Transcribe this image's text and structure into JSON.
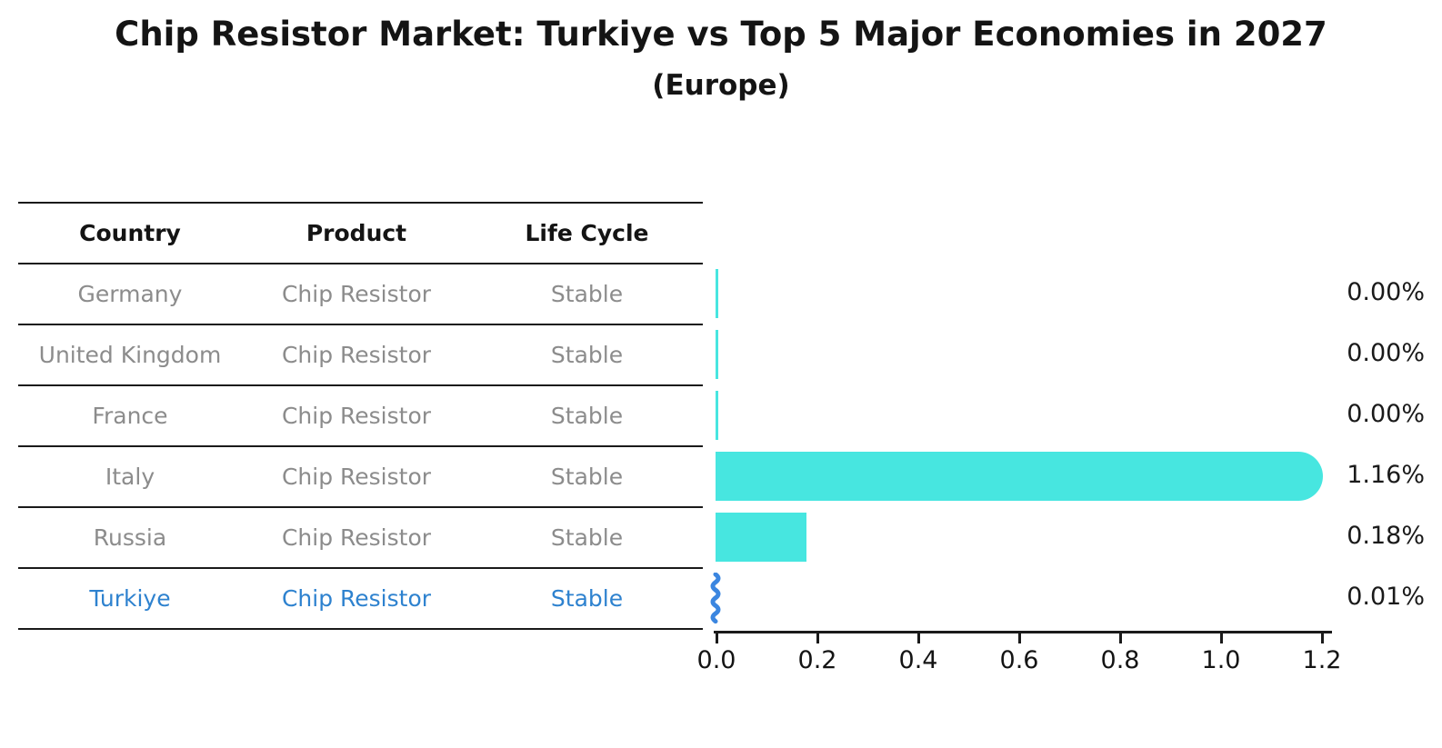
{
  "title": "Chip Resistor Market: Turkiye vs Top 5 Major Economies in 2027",
  "subtitle": "(Europe)",
  "table": {
    "headers": [
      "Country",
      "Product",
      "Life Cycle"
    ],
    "rows": [
      {
        "country": "Germany",
        "product": "Chip Resistor",
        "life_cycle": "Stable",
        "highlight": false
      },
      {
        "country": "United Kingdom",
        "product": "Chip Resistor",
        "life_cycle": "Stable",
        "highlight": false
      },
      {
        "country": "France",
        "product": "Chip Resistor",
        "life_cycle": "Stable",
        "highlight": false
      },
      {
        "country": "Italy",
        "product": "Chip Resistor",
        "life_cycle": "Stable",
        "highlight": false
      },
      {
        "country": "Russia",
        "product": "Chip Resistor",
        "life_cycle": "Stable",
        "highlight": false
      },
      {
        "country": "Turkiye",
        "product": "Chip Resistor",
        "life_cycle": "Stable",
        "highlight": true
      }
    ]
  },
  "chart_data": {
    "type": "bar",
    "orientation": "horizontal",
    "categories": [
      "Germany",
      "United Kingdom",
      "France",
      "Italy",
      "Russia",
      "Turkiye"
    ],
    "values": [
      0.0,
      0.0,
      0.0,
      1.16,
      0.18,
      0.01
    ],
    "value_labels": [
      "0.00%",
      "0.00%",
      "0.00%",
      "1.16%",
      "0.18%",
      "0.01%"
    ],
    "x_ticks": [
      "0.0",
      "0.2",
      "0.4",
      "0.6",
      "0.8",
      "1.0",
      "1.2"
    ],
    "xlim": [
      0.0,
      1.2
    ],
    "grid": false,
    "legend": false,
    "highlight_category": "Turkiye"
  },
  "colors": {
    "bar": "#47e6e0",
    "highlight_text": "#2e82cf",
    "highlight_bar": "#3b86e0",
    "row_text": "#8c8c8c",
    "text": "#141414"
  }
}
